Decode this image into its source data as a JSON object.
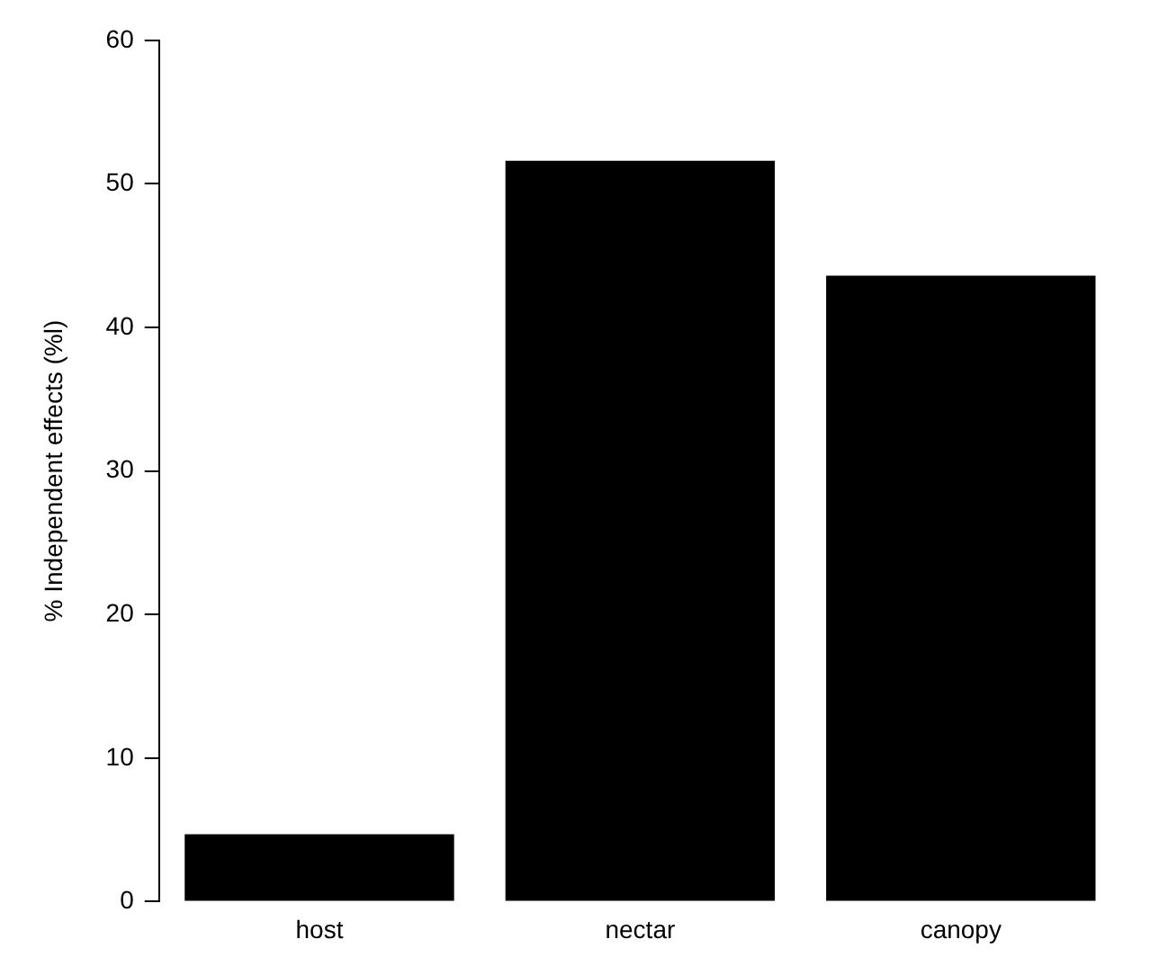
{
  "chart_data": {
    "type": "bar",
    "ylabel": "% Independent effects (%l)",
    "categories": [
      "host",
      "nectar",
      "canopy"
    ],
    "values": [
      4.7,
      51.6,
      43.6
    ],
    "color": "#000000",
    "ylim": [
      0,
      60
    ],
    "yticks": [
      0,
      10,
      20,
      30,
      40,
      50,
      60
    ],
    "grid": false,
    "legend": false
  }
}
